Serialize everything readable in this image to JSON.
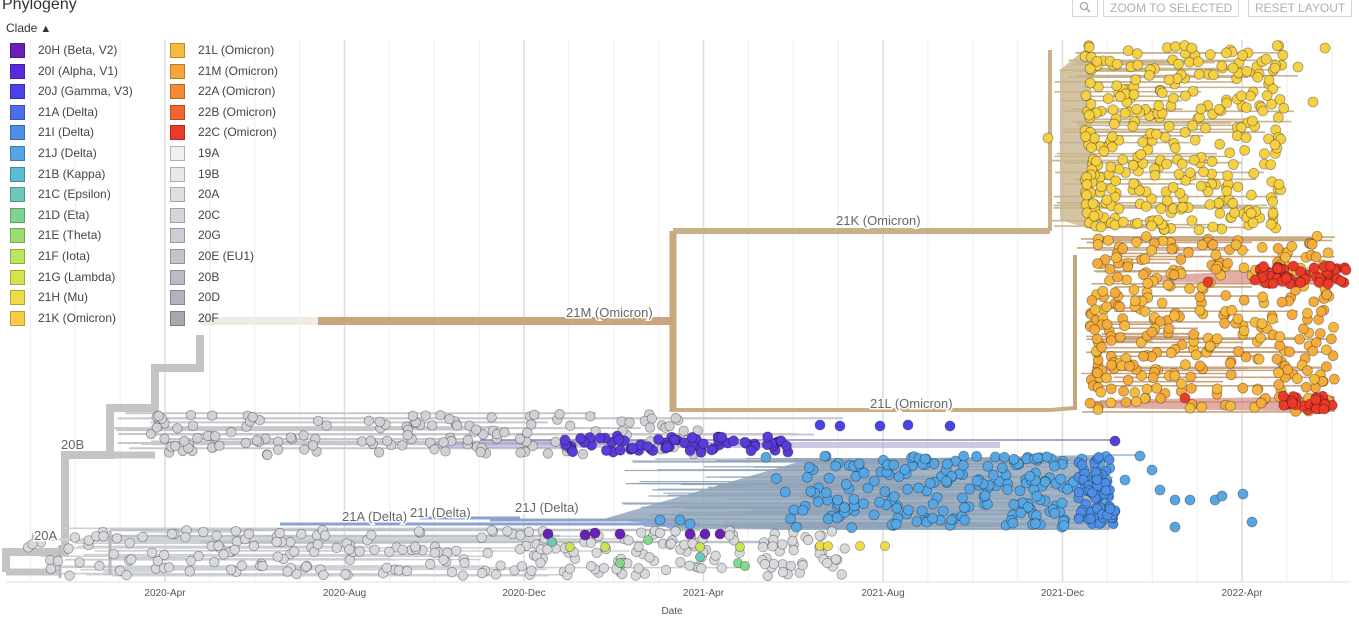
{
  "header": {
    "title": "Phylogeny",
    "clade_label": "Clade",
    "zoom_selected": "ZOOM TO SELECTED",
    "reset_layout": "RESET LAYOUT",
    "search_icon": "magnifier-icon"
  },
  "legend": {
    "col1": [
      {
        "label": "20H (Beta, V2)",
        "color": "#6a1fb6"
      },
      {
        "label": "20I (Alpha, V1)",
        "color": "#5a2ad8"
      },
      {
        "label": "20J (Gamma, V3)",
        "color": "#4a43e6"
      },
      {
        "label": "21A (Delta)",
        "color": "#4a6ee8"
      },
      {
        "label": "21I (Delta)",
        "color": "#4d8ee6"
      },
      {
        "label": "21J (Delta)",
        "color": "#56a6e4"
      },
      {
        "label": "21B (Kappa)",
        "color": "#5dbad6"
      },
      {
        "label": "21C (Epsilon)",
        "color": "#6cc9b6"
      },
      {
        "label": "21D (Eta)",
        "color": "#80d48f"
      },
      {
        "label": "21E (Theta)",
        "color": "#9ddc72"
      },
      {
        "label": "21F (Iota)",
        "color": "#bde35f"
      },
      {
        "label": "21G (Lambda)",
        "color": "#d8e24f"
      },
      {
        "label": "21H (Mu)",
        "color": "#ecdd48"
      },
      {
        "label": "21K (Omicron)",
        "color": "#f6cf44"
      }
    ],
    "col2": [
      {
        "label": "21L (Omicron)",
        "color": "#f6bb3e"
      },
      {
        "label": "21M (Omicron)",
        "color": "#f5a53b"
      },
      {
        "label": "22A (Omicron)",
        "color": "#f28a37"
      },
      {
        "label": "22B (Omicron)",
        "color": "#ee6733"
      },
      {
        "label": "22C (Omicron)",
        "color": "#e93a2b"
      },
      {
        "label": "19A",
        "color": "#eef1f3"
      },
      {
        "label": "19B",
        "color": "#e6e9ec"
      },
      {
        "label": "20A",
        "color": "#dcdfe3"
      },
      {
        "label": "20C",
        "color": "#d3d6db"
      },
      {
        "label": "20G",
        "color": "#cbced4"
      },
      {
        "label": "20E (EU1)",
        "color": "#c2c5cb"
      },
      {
        "label": "20B",
        "color": "#b9bcc3"
      },
      {
        "label": "20D",
        "color": "#b0b3bb"
      },
      {
        "label": "20F",
        "color": "#a6a9b1"
      }
    ]
  },
  "chart_data": {
    "type": "scatter",
    "description_kind": "time-scaled phylogenetic tree with tips colored by clade",
    "xlabel": "Date",
    "ylabel": "",
    "x_ticks": [
      "2020-Apr",
      "2020-Aug",
      "2020-Dec",
      "2021-Apr",
      "2021-Aug",
      "2021-Dec",
      "2022-Apr"
    ],
    "xlim": [
      "2020-01",
      "2022-06"
    ],
    "grid": true,
    "legend_position": "top-left",
    "branch_labels": [
      "20A",
      "20B",
      "21A (Delta)",
      "21I (Delta)",
      "21J (Delta)",
      "21M (Omicron)",
      "21K (Omicron)",
      "21L (Omicron)"
    ],
    "clades": [
      {
        "name": "21K (Omicron)",
        "tip_date_range": [
          "2021-11",
          "2022-05"
        ],
        "color": "#f6cf44"
      },
      {
        "name": "21L (Omicron)",
        "tip_date_range": [
          "2021-12",
          "2022-05"
        ],
        "color": "#f6bb3e"
      },
      {
        "name": "22C (Omicron)",
        "tip_date_range": [
          "2022-04",
          "2022-05"
        ],
        "color": "#e93a2b"
      },
      {
        "name": "21J (Delta)",
        "tip_date_range": [
          "2021-04",
          "2022-04"
        ],
        "color": "#56a6e4"
      },
      {
        "name": "20I (Alpha, V1)",
        "tip_date_range": [
          "2020-12",
          "2021-10"
        ],
        "color": "#5a2ad8"
      },
      {
        "name": "20H (Beta, V2)",
        "tip_date_range": [
          "2021-01",
          "2021-04"
        ],
        "color": "#6a1fb6"
      },
      {
        "name": "20A / 20B / 20C / 20G",
        "tip_date_range": [
          "2020-01",
          "2021-09"
        ],
        "color": "#cfd2d6"
      }
    ]
  }
}
